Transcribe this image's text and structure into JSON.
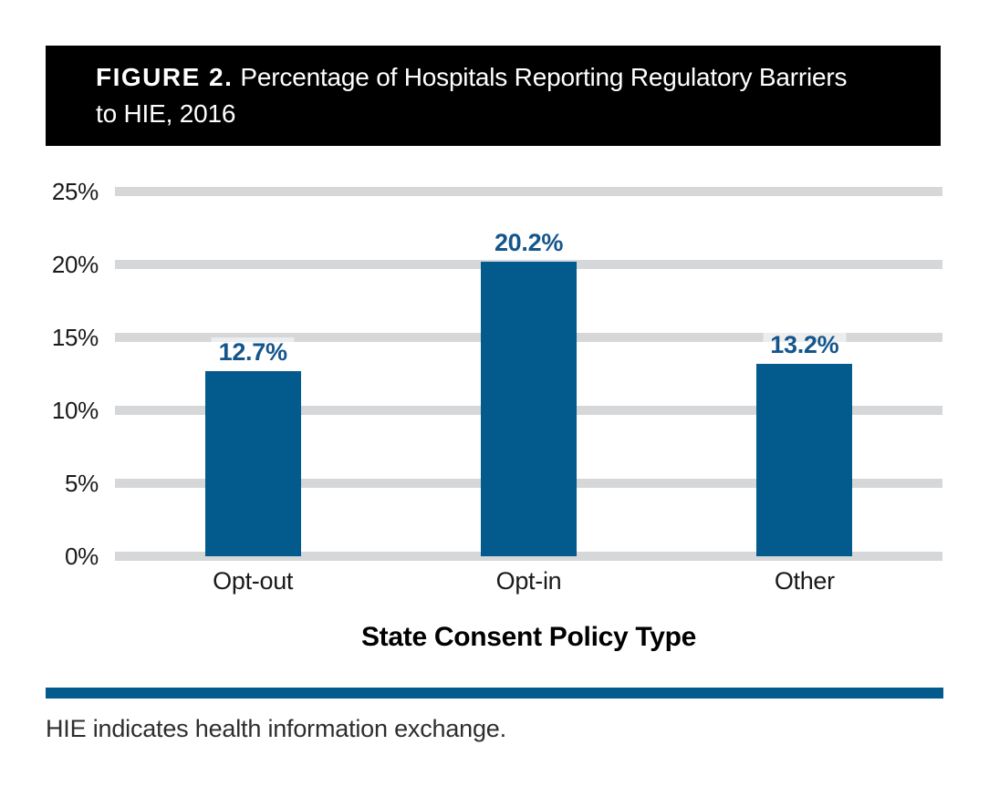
{
  "header": {
    "prefix": "FIGURE 2.",
    "title_line1": "Percentage of Hospitals Reporting Regulatory Barriers",
    "title_line2": "to HIE, 2016"
  },
  "chart_data": {
    "type": "bar",
    "title": "FIGURE 2. Percentage of Hospitals Reporting Regulatory Barriers to HIE, 2016",
    "categories": [
      "Opt-out",
      "Opt-in",
      "Other"
    ],
    "values": [
      12.7,
      20.2,
      13.2
    ],
    "value_labels": [
      "12.7%",
      "20.2%",
      "13.2%"
    ],
    "xlabel": "State Consent Policy Type",
    "ylabel": "",
    "ylim": [
      0,
      25
    ],
    "y_ticks": [
      {
        "value": 0,
        "label": "0%"
      },
      {
        "value": 5,
        "label": "5%"
      },
      {
        "value": 10,
        "label": "10%"
      },
      {
        "value": 15,
        "label": "15%"
      },
      {
        "value": 20,
        "label": "20%"
      },
      {
        "value": 25,
        "label": "25%"
      }
    ],
    "grid": "horizontal",
    "legend": "none",
    "colors": {
      "bar": "#035A8C",
      "value_label": "#14568C",
      "gridline": "#D5D7D9",
      "tick_text": "#1A1A1A"
    }
  },
  "footer": {
    "divider_color": "#035A8C",
    "note": "HIE indicates health information exchange."
  }
}
